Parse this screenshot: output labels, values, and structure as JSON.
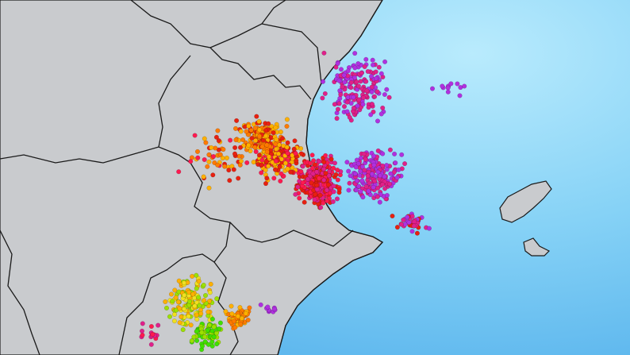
{
  "map": {
    "colors": {
      "sea_light": "#b9ebfd",
      "sea_mid": "#86d2f6",
      "sea_deep": "#5fb8ee",
      "land": "#c9cbce",
      "border": "#1a1a1a"
    },
    "strike_colors": [
      "#b030e0",
      "#e0208a",
      "#ff1a50",
      "#e82010",
      "#ff7a00",
      "#ffb000",
      "#f0e020",
      "#9de000",
      "#40e000"
    ]
  }
}
